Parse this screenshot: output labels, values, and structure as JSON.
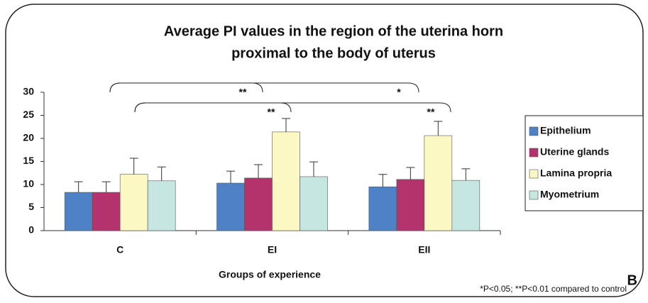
{
  "chart_data": {
    "type": "bar",
    "title": [
      "Average PI values in the region of the uterina horn",
      "proximal to the body of uterus"
    ],
    "x_label": "Groups of experience",
    "categories": [
      "C",
      "EI",
      "EII"
    ],
    "series": [
      {
        "name": "Epithelium",
        "color": "#4f81c6",
        "values": [
          8.3,
          10.3,
          9.5
        ],
        "errors": [
          2.3,
          2.6,
          2.7
        ]
      },
      {
        "name": "Uterine glands",
        "color": "#b5336d",
        "values": [
          8.3,
          11.4,
          11.1
        ],
        "errors": [
          2.3,
          2.9,
          2.6
        ]
      },
      {
        "name": "Lamina propria",
        "color": "#fbf8c4",
        "values": [
          12.2,
          21.4,
          20.6
        ],
        "errors": [
          3.5,
          2.9,
          3.1
        ]
      },
      {
        "name": "Myometrium",
        "color": "#c6e6e2",
        "values": [
          10.8,
          11.7,
          10.9
        ],
        "errors": [
          3.0,
          3.2,
          2.5
        ]
      }
    ],
    "ylim": [
      0,
      30
    ],
    "yticks": [
      0,
      5,
      10,
      15,
      20,
      25,
      30
    ],
    "annotations": [
      "**",
      "*",
      "**",
      "**"
    ],
    "footnote": "*P<0.05; **P<0.01 compared to control",
    "panel_label": "B",
    "legend": "right"
  }
}
